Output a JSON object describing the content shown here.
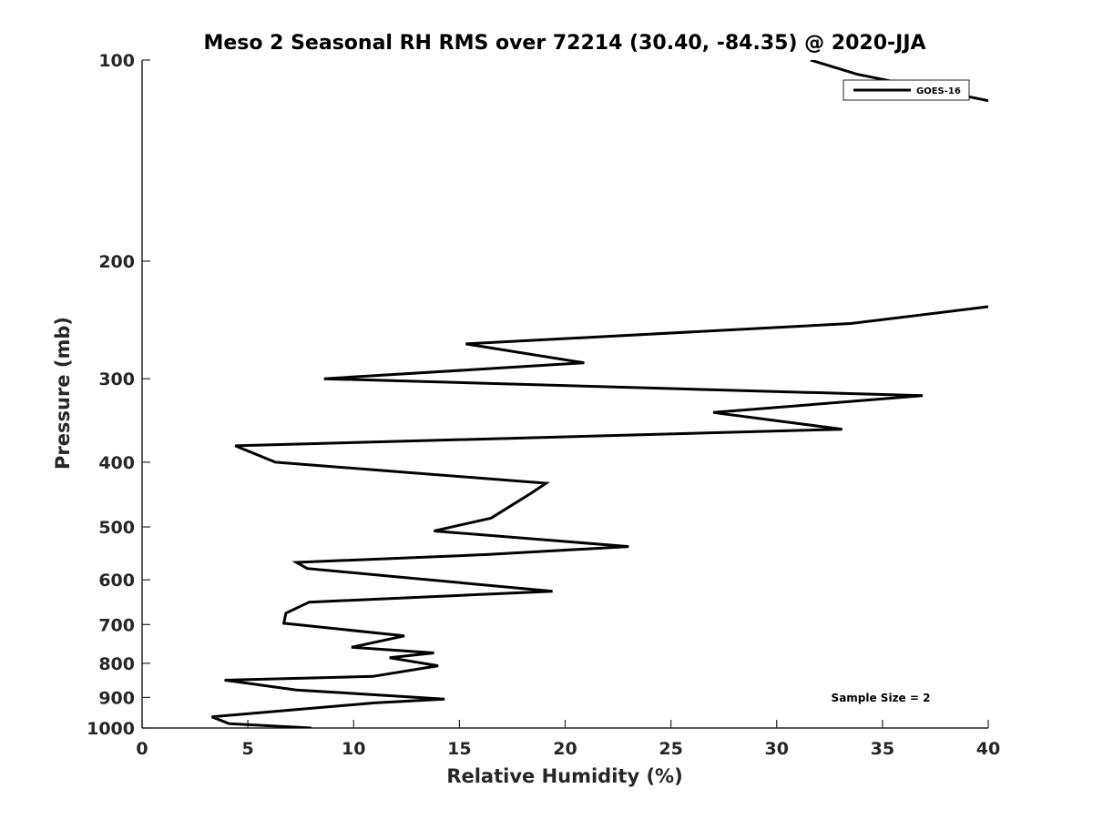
{
  "chart_data": {
    "type": "line",
    "title": "Meso 2 Seasonal RH RMS over 72214 (30.40, -84.35) @ 2020-JJA",
    "xlabel": "Relative Humidity (%)",
    "ylabel": "Pressure (mb)",
    "xlim": [
      0,
      40
    ],
    "ylim": [
      100,
      1000
    ],
    "y_scale": "log",
    "y_reversed": true,
    "xticks": [
      0,
      5,
      10,
      15,
      20,
      25,
      30,
      35,
      40
    ],
    "yticks": [
      100,
      200,
      300,
      400,
      500,
      600,
      700,
      800,
      900,
      1000
    ],
    "grid": false,
    "legend_position": "top-right",
    "series": [
      {
        "name": "GOES-16",
        "color": "#000000",
        "x": [
          8.0,
          4.1,
          3.3,
          11.0,
          14.3,
          7.3,
          3.9,
          10.9,
          14.0,
          11.7,
          13.8,
          9.9,
          12.4,
          6.7,
          6.8,
          7.9,
          19.4,
          12.1,
          7.8,
          7.3,
          16.3,
          23.0,
          13.8,
          16.5,
          18.4,
          19.1,
          6.3,
          4.4,
          33.1,
          27.0,
          36.9,
          8.6,
          20.9,
          15.3,
          33.5,
          40.0,
          null,
          31.6,
          33.8,
          40.0
        ],
        "y": [
          1000,
          985,
          962,
          917,
          905,
          877,
          848,
          837,
          807,
          785,
          772,
          757,
          728,
          697,
          673,
          648,
          624,
          594,
          577,
          565,
          550,
          535,
          507,
          485,
          445,
          430,
          400,
          378,
          357,
          337,
          318,
          300,
          284,
          266,
          248,
          234,
          null,
          100,
          105,
          115
        ]
      }
    ],
    "annotations": [
      "Sample Size = 2"
    ]
  }
}
